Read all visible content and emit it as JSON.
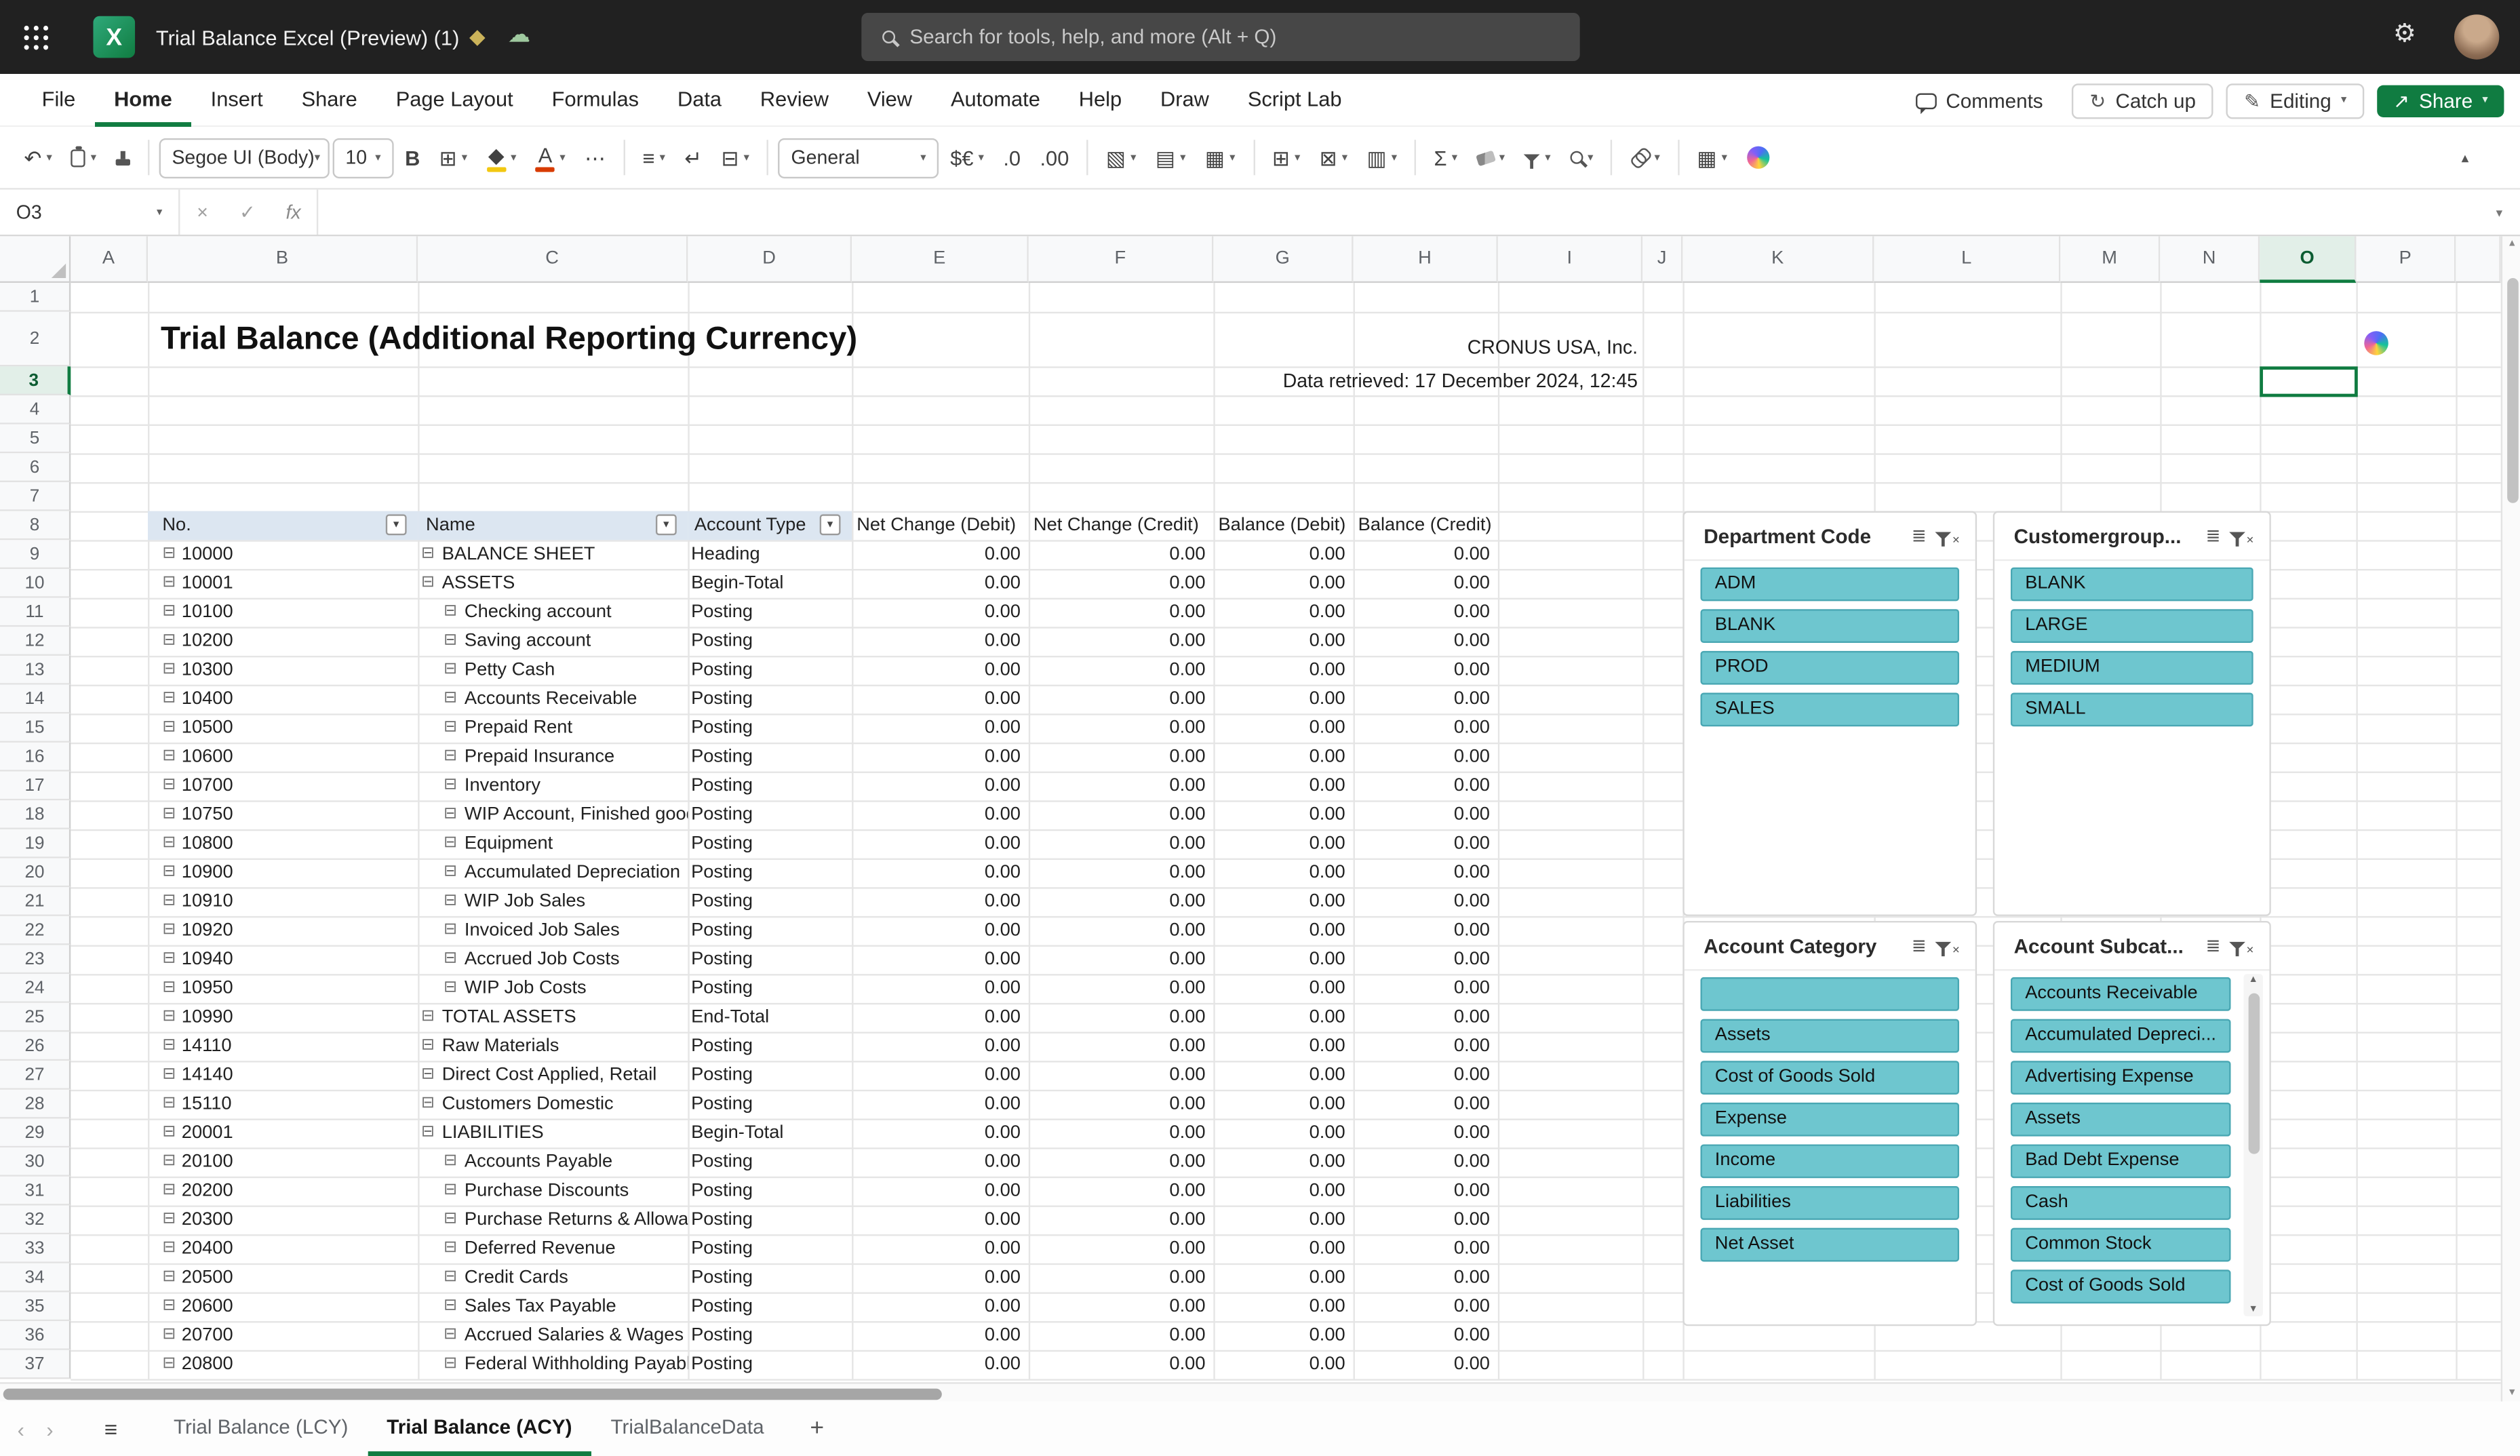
{
  "titlebar": {
    "doc_title": "Trial Balance Excel (Preview) (1)",
    "search_placeholder": "Search for tools, help, and more (Alt + Q)"
  },
  "menu": {
    "items": [
      "File",
      "Home",
      "Insert",
      "Share",
      "Page Layout",
      "Formulas",
      "Data",
      "Review",
      "View",
      "Automate",
      "Help",
      "Draw",
      "Script Lab"
    ],
    "active": "Home",
    "right": {
      "comments": "Comments",
      "catch_up": "Catch up",
      "editing": "Editing",
      "share": "Share"
    }
  },
  "ribbon": {
    "controls": [
      {
        "name": "undo-button",
        "glyph": "↶",
        "chevron": true
      },
      {
        "name": "clipboard-paste-button",
        "css": "clipboard",
        "chevron": true
      },
      {
        "name": "format-painter-button",
        "css": "painter"
      },
      {
        "sep": true
      },
      {
        "name": "font-name-select",
        "combo": "Segoe UI (Body)",
        "width": 106
      },
      {
        "name": "font-size-select",
        "combo": "10",
        "width": 38
      },
      {
        "name": "bold-button",
        "text": "B",
        "strong": true
      },
      {
        "name": "borders-button",
        "glyph": "⊞",
        "chevron": true
      },
      {
        "name": "fill-color-button",
        "glyph": "◆",
        "bar": "#f2c811",
        "chevron": true
      },
      {
        "name": "font-color-button",
        "text": "A",
        "bar": "#d83b01",
        "chevron": true
      },
      {
        "name": "more-font-options-button",
        "glyph": "⋯"
      },
      {
        "sep": true
      },
      {
        "name": "align-button",
        "glyph": "≡",
        "chevron": true
      },
      {
        "name": "wrap-text-button",
        "glyph": "↵"
      },
      {
        "name": "merge-center-button",
        "glyph": "⊟",
        "chevron": true
      },
      {
        "sep": true
      },
      {
        "name": "number-format-select",
        "combo": "General",
        "width": 100
      },
      {
        "name": "accounting-format-button",
        "text": "$€",
        "chevron": true
      },
      {
        "name": "decrease-decimal-button",
        "text": ".0"
      },
      {
        "name": "increase-decimal-button",
        "text": ".00"
      },
      {
        "sep": true
      },
      {
        "name": "conditional-formatting-button",
        "glyph": "▧",
        "chevron": true
      },
      {
        "name": "format-as-table-button",
        "glyph": "▤",
        "chevron": true
      },
      {
        "name": "cell-styles-button",
        "glyph": "▦",
        "chevron": true
      },
      {
        "sep": true
      },
      {
        "name": "insert-cells-button",
        "glyph": "⊞",
        "chevron": true
      },
      {
        "name": "delete-cells-button",
        "glyph": "⊠",
        "chevron": true
      },
      {
        "name": "format-cells-button",
        "glyph": "▥",
        "chevron": true
      },
      {
        "sep": true
      },
      {
        "name": "autosum-button",
        "glyph": "Σ",
        "chevron": true
      },
      {
        "name": "clear-button",
        "css": "eraser",
        "chevron": true
      },
      {
        "name": "sort-filter-button",
        "css": "funnel",
        "chevron": true
      },
      {
        "name": "find-button",
        "css": "magnifier",
        "chevron": true
      },
      {
        "sep": true
      },
      {
        "name": "link-button",
        "css": "link",
        "chevron": true
      },
      {
        "sep": true
      },
      {
        "name": "view-grid-button",
        "glyph": "▦",
        "chevron": true
      },
      {
        "name": "copilot-button",
        "css": "copilot"
      }
    ]
  },
  "formula_bar": {
    "name_box": "O3",
    "fx_label": "fx",
    "formula": ""
  },
  "sheet": {
    "title": "Trial Balance (Additional Reporting Currency)",
    "company": "CRONUS USA, Inc.",
    "retrieved": "Data retrieved: 17 December 2024, 12:45",
    "selected_cell": "O3",
    "columns_visible": [
      "A",
      "B",
      "C",
      "D",
      "E",
      "F",
      "G",
      "H",
      "I",
      "J",
      "K",
      "L",
      "M",
      "N",
      "O",
      "P"
    ],
    "first_row": 1,
    "last_row": 37,
    "table": {
      "headers": [
        "No.",
        "Name",
        "Account Type",
        "Net Change (Debit)",
        "Net Change (Credit)",
        "Balance (Debit)",
        "Balance (Credit)"
      ],
      "rows": [
        {
          "no": "10000",
          "name": "BALANCE SHEET",
          "type": "Heading",
          "indent": 0,
          "amounts": [
            "0.00",
            "0.00",
            "0.00",
            "0.00"
          ]
        },
        {
          "no": "10001",
          "name": "ASSETS",
          "type": "Begin-Total",
          "indent": 0,
          "amounts": [
            "0.00",
            "0.00",
            "0.00",
            "0.00"
          ]
        },
        {
          "no": "10100",
          "name": "Checking account",
          "type": "Posting",
          "indent": 1,
          "amounts": [
            "0.00",
            "0.00",
            "0.00",
            "0.00"
          ]
        },
        {
          "no": "10200",
          "name": "Saving account",
          "type": "Posting",
          "indent": 1,
          "amounts": [
            "0.00",
            "0.00",
            "0.00",
            "0.00"
          ]
        },
        {
          "no": "10300",
          "name": "Petty Cash",
          "type": "Posting",
          "indent": 1,
          "amounts": [
            "0.00",
            "0.00",
            "0.00",
            "0.00"
          ]
        },
        {
          "no": "10400",
          "name": "Accounts Receivable",
          "type": "Posting",
          "indent": 1,
          "amounts": [
            "0.00",
            "0.00",
            "0.00",
            "0.00"
          ]
        },
        {
          "no": "10500",
          "name": "Prepaid Rent",
          "type": "Posting",
          "indent": 1,
          "amounts": [
            "0.00",
            "0.00",
            "0.00",
            "0.00"
          ]
        },
        {
          "no": "10600",
          "name": "Prepaid Insurance",
          "type": "Posting",
          "indent": 1,
          "amounts": [
            "0.00",
            "0.00",
            "0.00",
            "0.00"
          ]
        },
        {
          "no": "10700",
          "name": "Inventory",
          "type": "Posting",
          "indent": 1,
          "amounts": [
            "0.00",
            "0.00",
            "0.00",
            "0.00"
          ]
        },
        {
          "no": "10750",
          "name": "WIP Account, Finished goods",
          "type": "Posting",
          "indent": 1,
          "amounts": [
            "0.00",
            "0.00",
            "0.00",
            "0.00"
          ]
        },
        {
          "no": "10800",
          "name": "Equipment",
          "type": "Posting",
          "indent": 1,
          "amounts": [
            "0.00",
            "0.00",
            "0.00",
            "0.00"
          ]
        },
        {
          "no": "10900",
          "name": "Accumulated Depreciation",
          "type": "Posting",
          "indent": 1,
          "amounts": [
            "0.00",
            "0.00",
            "0.00",
            "0.00"
          ]
        },
        {
          "no": "10910",
          "name": "WIP Job Sales",
          "type": "Posting",
          "indent": 1,
          "amounts": [
            "0.00",
            "0.00",
            "0.00",
            "0.00"
          ]
        },
        {
          "no": "10920",
          "name": "Invoiced Job Sales",
          "type": "Posting",
          "indent": 1,
          "amounts": [
            "0.00",
            "0.00",
            "0.00",
            "0.00"
          ]
        },
        {
          "no": "10940",
          "name": "Accrued Job Costs",
          "type": "Posting",
          "indent": 1,
          "amounts": [
            "0.00",
            "0.00",
            "0.00",
            "0.00"
          ]
        },
        {
          "no": "10950",
          "name": "WIP Job Costs",
          "type": "Posting",
          "indent": 1,
          "amounts": [
            "0.00",
            "0.00",
            "0.00",
            "0.00"
          ]
        },
        {
          "no": "10990",
          "name": "TOTAL ASSETS",
          "type": "End-Total",
          "indent": 0,
          "amounts": [
            "0.00",
            "0.00",
            "0.00",
            "0.00"
          ]
        },
        {
          "no": "14110",
          "name": "Raw Materials",
          "type": "Posting",
          "indent": 0,
          "amounts": [
            "0.00",
            "0.00",
            "0.00",
            "0.00"
          ]
        },
        {
          "no": "14140",
          "name": "Direct Cost Applied, Retail",
          "type": "Posting",
          "indent": 0,
          "amounts": [
            "0.00",
            "0.00",
            "0.00",
            "0.00"
          ]
        },
        {
          "no": "15110",
          "name": "Customers Domestic",
          "type": "Posting",
          "indent": 0,
          "amounts": [
            "0.00",
            "0.00",
            "0.00",
            "0.00"
          ]
        },
        {
          "no": "20001",
          "name": "LIABILITIES",
          "type": "Begin-Total",
          "indent": 0,
          "amounts": [
            "0.00",
            "0.00",
            "0.00",
            "0.00"
          ]
        },
        {
          "no": "20100",
          "name": "Accounts Payable",
          "type": "Posting",
          "indent": 1,
          "amounts": [
            "0.00",
            "0.00",
            "0.00",
            "0.00"
          ]
        },
        {
          "no": "20200",
          "name": "Purchase Discounts",
          "type": "Posting",
          "indent": 1,
          "amounts": [
            "0.00",
            "0.00",
            "0.00",
            "0.00"
          ]
        },
        {
          "no": "20300",
          "name": "Purchase Returns & Allowances",
          "type": "Posting",
          "indent": 1,
          "amounts": [
            "0.00",
            "0.00",
            "0.00",
            "0.00"
          ]
        },
        {
          "no": "20400",
          "name": "Deferred Revenue",
          "type": "Posting",
          "indent": 1,
          "amounts": [
            "0.00",
            "0.00",
            "0.00",
            "0.00"
          ]
        },
        {
          "no": "20500",
          "name": "Credit Cards",
          "type": "Posting",
          "indent": 1,
          "amounts": [
            "0.00",
            "0.00",
            "0.00",
            "0.00"
          ]
        },
        {
          "no": "20600",
          "name": "Sales Tax Payable",
          "type": "Posting",
          "indent": 1,
          "amounts": [
            "0.00",
            "0.00",
            "0.00",
            "0.00"
          ]
        },
        {
          "no": "20700",
          "name": "Accrued Salaries & Wages",
          "type": "Posting",
          "indent": 1,
          "amounts": [
            "0.00",
            "0.00",
            "0.00",
            "0.00"
          ]
        },
        {
          "no": "20800",
          "name": "Federal Withholding Payable",
          "type": "Posting",
          "indent": 1,
          "amounts": [
            "0.00",
            "0.00",
            "0.00",
            "0.00"
          ]
        }
      ]
    }
  },
  "slicers": [
    {
      "title": "Department Code",
      "items": [
        "ADM",
        "BLANK",
        "PROD",
        "SALES"
      ],
      "has_scrollbar": false
    },
    {
      "title": "Customergroup...",
      "items": [
        "BLANK",
        "LARGE",
        "MEDIUM",
        "SMALL"
      ],
      "has_scrollbar": false
    },
    {
      "title": "Account Category",
      "items": [
        "",
        "Assets",
        "Cost of Goods Sold",
        "Expense",
        "Income",
        "Liabilities",
        "Net Asset"
      ],
      "has_scrollbar": false
    },
    {
      "title": "Account Subcat...",
      "items": [
        "Accounts Receivable",
        "Accumulated Depreci...",
        "Advertising Expense",
        "Assets",
        "Bad Debt Expense",
        "Cash",
        "Common Stock",
        "Cost of Goods Sold"
      ],
      "has_scrollbar": true
    }
  ],
  "tabs": {
    "sheets": [
      "Trial Balance (LCY)",
      "Trial Balance (ACY)",
      "TrialBalanceData"
    ],
    "active": "Trial Balance (ACY)",
    "add_label": "+"
  },
  "colors": {
    "accent_green": "#107C41",
    "slicer_item_fill": "#6EC6CF",
    "table_header_fill": "#DCE6F1",
    "topbar_bg": "#212121"
  }
}
